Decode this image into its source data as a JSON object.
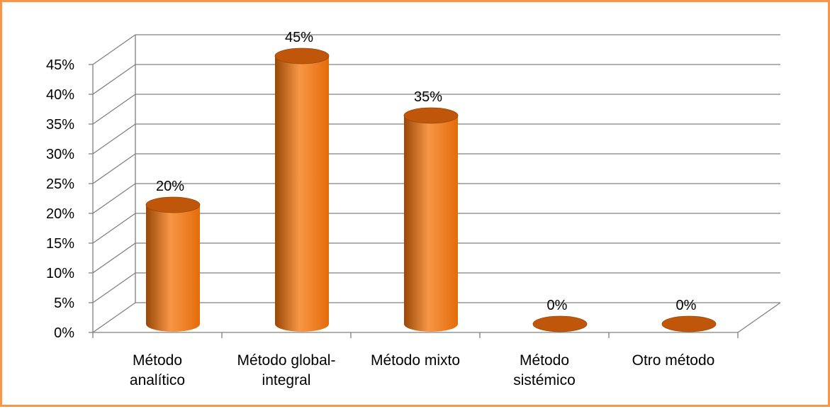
{
  "chart_data": {
    "type": "bar",
    "style": "3d-cylinder",
    "categories": [
      [
        "Método",
        "analítico"
      ],
      [
        "Método global-",
        "integral"
      ],
      [
        "Método mixto"
      ],
      [
        "Método",
        "sistémico"
      ],
      [
        "Otro método"
      ]
    ],
    "values": [
      20,
      45,
      35,
      0,
      0
    ],
    "data_labels": [
      "20%",
      "45%",
      "35%",
      "0%",
      "0%"
    ],
    "y_ticks": [
      "0%",
      "5%",
      "10%",
      "15%",
      "20%",
      "25%",
      "30%",
      "35%",
      "40%",
      "45%"
    ],
    "ylim": [
      0,
      45
    ],
    "title": "",
    "xlabel": "",
    "ylabel": "",
    "grid": true,
    "legend": "none",
    "colors": {
      "bar_light": "#f79646",
      "bar_main": "#e46c0a",
      "bar_dark": "#984807",
      "bar_top": "#c0560a",
      "frame_border": "#f79646",
      "gridline": "#808080"
    }
  }
}
